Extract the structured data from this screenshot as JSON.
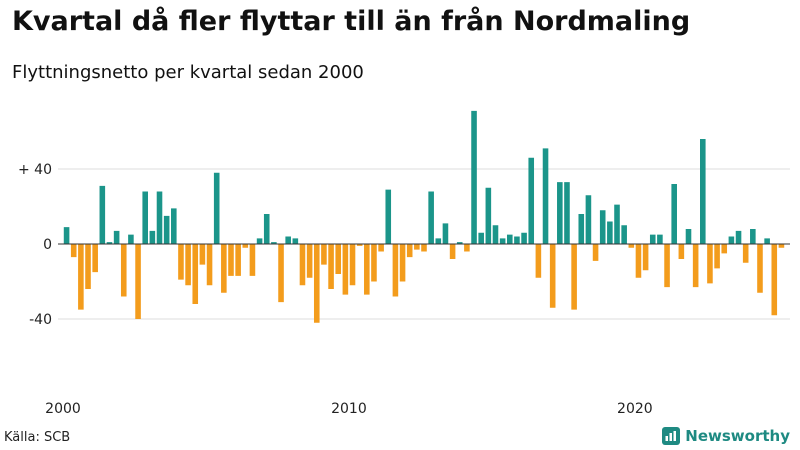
{
  "title": "Kvartal då fler flyttar till än från Nordmaling",
  "subtitle": "Flyttningsnetto per kvartal sedan 2000",
  "source": "Källa: SCB",
  "brand": {
    "name": "Newsworthy",
    "icon": "bar-chart-logo-icon",
    "color": "#1e8a82"
  },
  "colors": {
    "positive": "#1b958a",
    "negative": "#f39c1c",
    "grid": "#dddddd",
    "zero_line": "#333333"
  },
  "chart_data": {
    "type": "bar",
    "title": "Kvartal då fler flyttar till än från Nordmaling",
    "subtitle": "Flyttningsnetto per kvartal sedan 2000",
    "xlabel": "",
    "ylabel": "",
    "ylim": [
      -60,
      75
    ],
    "y_ticks": [
      {
        "value": 40,
        "label": "+ 40"
      },
      {
        "value": 0,
        "label": "0"
      },
      {
        "value": -40,
        "label": "-40"
      }
    ],
    "x_ticks": [
      {
        "value": 0,
        "label": "2000"
      },
      {
        "value": 40,
        "label": "2010"
      },
      {
        "value": 80,
        "label": "2020"
      }
    ],
    "grid": true,
    "legend": "none",
    "categories": [
      "2000 Q1",
      "2000 Q2",
      "2000 Q3",
      "2000 Q4",
      "2001 Q1",
      "2001 Q2",
      "2001 Q3",
      "2001 Q4",
      "2002 Q1",
      "2002 Q2",
      "2002 Q3",
      "2002 Q4",
      "2003 Q1",
      "2003 Q2",
      "2003 Q3",
      "2003 Q4",
      "2004 Q1",
      "2004 Q2",
      "2004 Q3",
      "2004 Q4",
      "2005 Q1",
      "2005 Q2",
      "2005 Q3",
      "2005 Q4",
      "2006 Q1",
      "2006 Q2",
      "2006 Q3",
      "2006 Q4",
      "2007 Q1",
      "2007 Q2",
      "2007 Q3",
      "2007 Q4",
      "2008 Q1",
      "2008 Q2",
      "2008 Q3",
      "2008 Q4",
      "2009 Q1",
      "2009 Q2",
      "2009 Q3",
      "2009 Q4",
      "2010 Q1",
      "2010 Q2",
      "2010 Q3",
      "2010 Q4",
      "2011 Q1",
      "2011 Q2",
      "2011 Q3",
      "2011 Q4",
      "2012 Q1",
      "2012 Q2",
      "2012 Q3",
      "2012 Q4",
      "2013 Q1",
      "2013 Q2",
      "2013 Q3",
      "2013 Q4",
      "2014 Q1",
      "2014 Q2",
      "2014 Q3",
      "2014 Q4",
      "2015 Q1",
      "2015 Q2",
      "2015 Q3",
      "2015 Q4",
      "2016 Q1",
      "2016 Q2",
      "2016 Q3",
      "2016 Q4",
      "2017 Q1",
      "2017 Q2",
      "2017 Q3",
      "2017 Q4",
      "2018 Q1",
      "2018 Q2",
      "2018 Q3",
      "2018 Q4",
      "2019 Q1",
      "2019 Q2",
      "2019 Q3",
      "2019 Q4",
      "2020 Q1",
      "2020 Q2",
      "2020 Q3",
      "2020 Q4",
      "2021 Q1",
      "2021 Q2",
      "2021 Q3",
      "2021 Q4",
      "2022 Q1",
      "2022 Q2",
      "2022 Q3",
      "2022 Q4",
      "2023 Q1",
      "2023 Q2",
      "2023 Q3",
      "2023 Q4",
      "2024 Q1",
      "2024 Q2",
      "2024 Q3",
      "2024 Q4",
      "2025 Q1"
    ],
    "values": [
      9,
      -7,
      -35,
      -24,
      -15,
      31,
      1,
      7,
      -28,
      5,
      -40,
      28,
      7,
      28,
      15,
      19,
      -19,
      -22,
      -32,
      -11,
      -22,
      38,
      -26,
      -17,
      -17,
      -2,
      -17,
      3,
      16,
      1,
      -31,
      4,
      3,
      -22,
      -18,
      -42,
      -11,
      -24,
      -16,
      -27,
      -22,
      -1,
      -27,
      -20,
      -4,
      29,
      -28,
      -20,
      -7,
      -3,
      -4,
      28,
      3,
      11,
      -8,
      1,
      -4,
      71,
      6,
      30,
      10,
      3,
      5,
      4,
      6,
      46,
      -18,
      51,
      -34,
      33,
      33,
      -35,
      16,
      26,
      -9,
      18,
      12,
      21,
      10,
      -2,
      -18,
      -14,
      5,
      5,
      -23,
      32,
      -8,
      8,
      -23,
      56,
      -21,
      -13,
      -5,
      4,
      7,
      -10,
      8,
      -26,
      3,
      -38,
      -2
    ]
  }
}
